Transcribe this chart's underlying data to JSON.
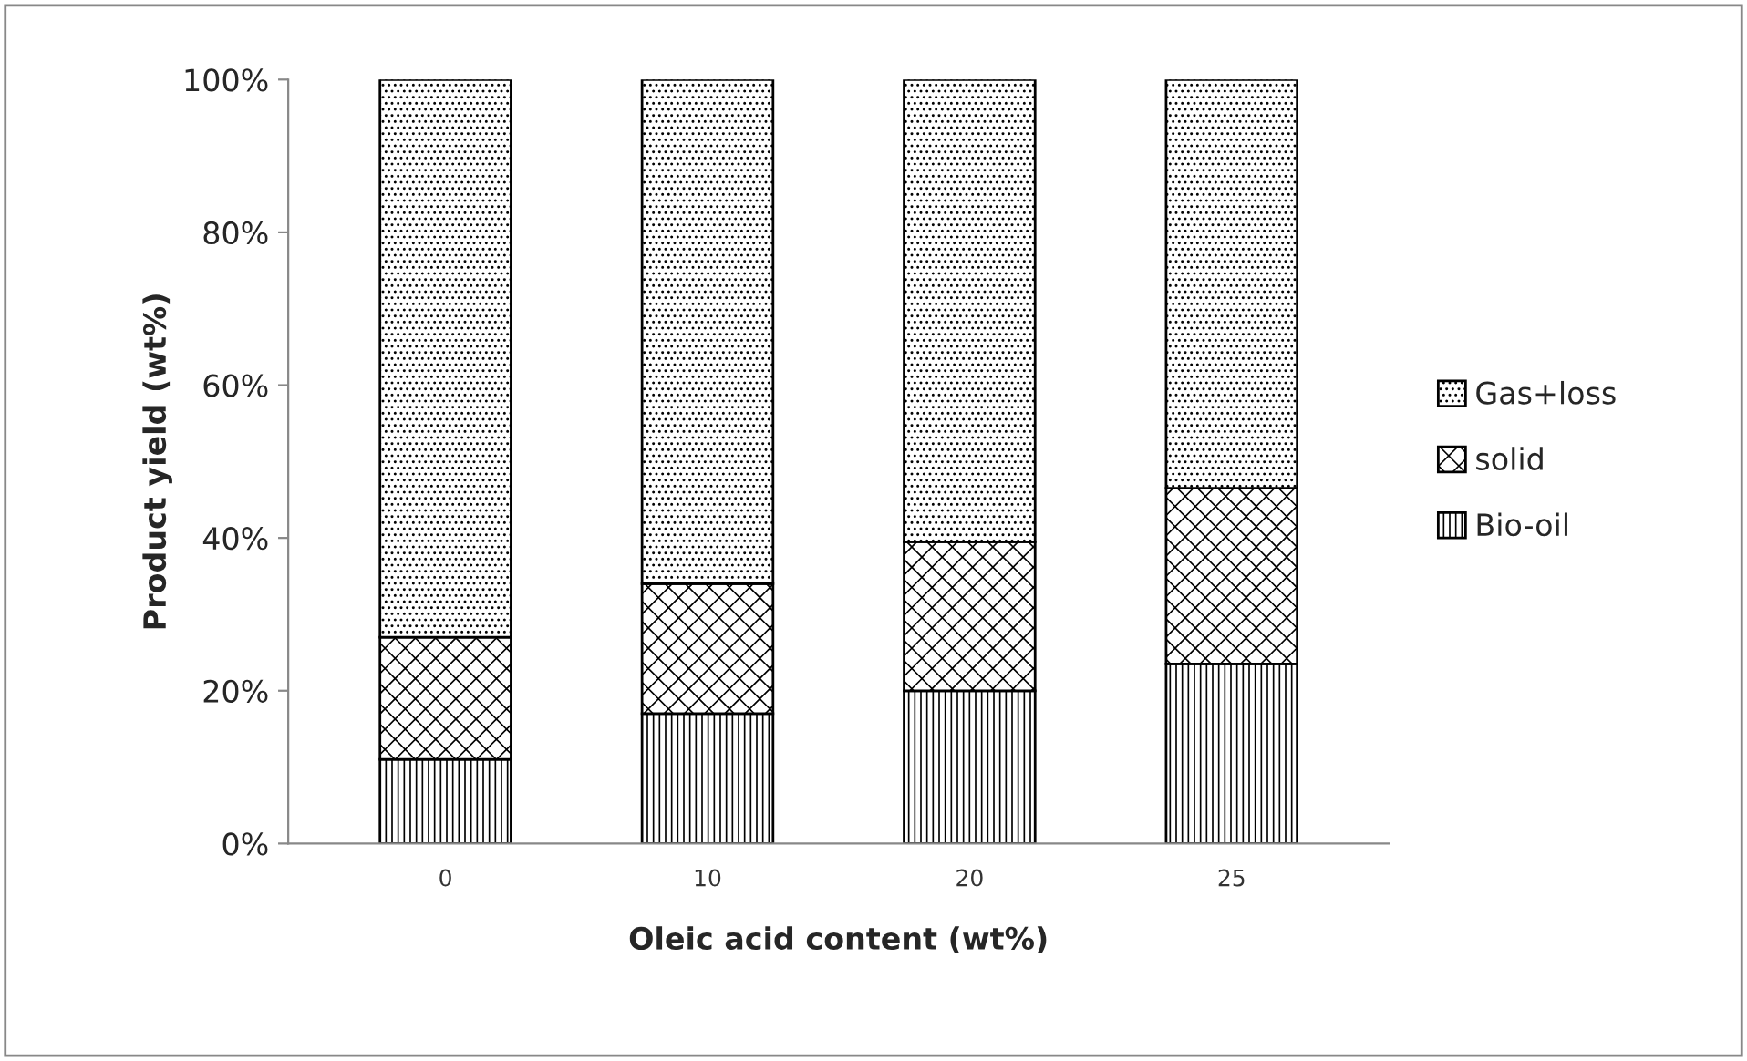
{
  "chart_data": {
    "type": "bar",
    "stacked": true,
    "xlabel": "Oleic acid content (wt%)",
    "ylabel": "Product yield (wt%)",
    "categories": [
      "0",
      "10",
      "20",
      "25"
    ],
    "series": [
      {
        "name": "Bio-oil",
        "color": "#000000",
        "values": [
          11,
          17,
          20,
          23.5
        ]
      },
      {
        "name": "solid",
        "color": "#000000",
        "values": [
          16,
          17,
          19.5,
          23
        ]
      },
      {
        "name": "Gas+loss",
        "color": "#000000",
        "values": [
          73,
          66,
          60.5,
          53.5
        ]
      }
    ],
    "ylim": [
      0,
      100
    ],
    "yticks": [
      {
        "value": 0,
        "label": "0%"
      },
      {
        "value": 20,
        "label": "20%"
      },
      {
        "value": 40,
        "label": "40%"
      },
      {
        "value": 60,
        "label": "60%"
      },
      {
        "value": 80,
        "label": "80%"
      },
      {
        "value": 100,
        "label": "100%"
      }
    ],
    "grid": false,
    "legend": "right"
  }
}
